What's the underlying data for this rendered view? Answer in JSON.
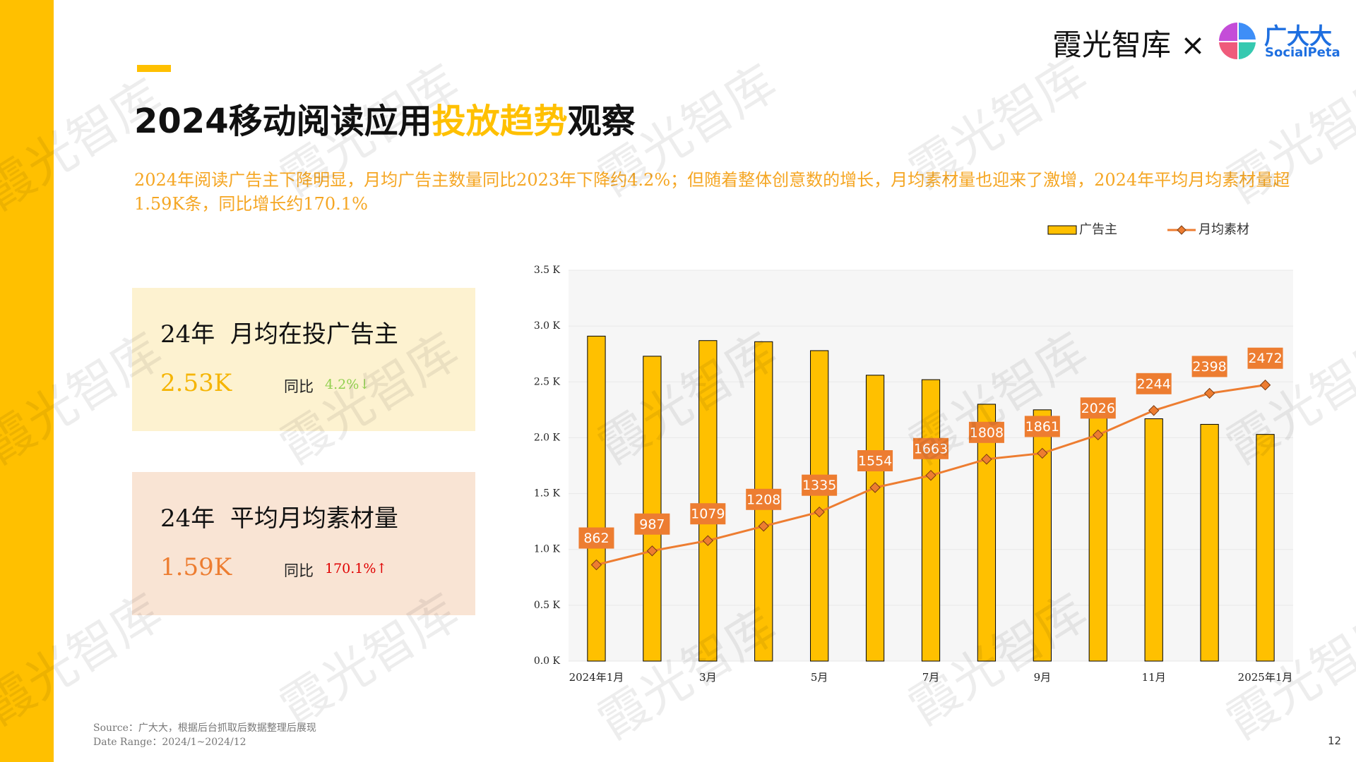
{
  "header": {
    "brand": "霞光智库",
    "times": "×",
    "partner": "广大大",
    "partner_en": "SocialPeta"
  },
  "watermark": "霞光智库",
  "title": {
    "prefix": "2024移动阅读应用",
    "highlight": "投放趋势",
    "suffix": "观察"
  },
  "subtitle": "2024年阅读广告主下降明显，月均广告主数量同比2023年下降约4.2%；但随着整体创意数的增长，月均素材量也迎来了激增，2024年平均月均素材量超1.59K条，同比增长约170.1%",
  "cards": [
    {
      "title": "24年  月均在投广告主",
      "value": "2.53K",
      "yoy_label": "同比",
      "yoy": "4.2%↓"
    },
    {
      "title": "24年  平均月均素材量",
      "value": "1.59K",
      "yoy_label": "同比",
      "yoy": "170.1%↑"
    }
  ],
  "footer": {
    "source": "Source：广大大，根据后台抓取后数据整理后展现",
    "date_range": "Date Range：2024/1~2024/12",
    "page": "12"
  },
  "chart_data": {
    "type": "bar",
    "categories": [
      "2024年1月",
      null,
      "3月",
      null,
      "5月",
      null,
      "7月",
      null,
      "9月",
      null,
      "11月",
      null,
      "2025年1月"
    ],
    "series": [
      {
        "name": "广告主",
        "type": "bar",
        "color": "#ffc000",
        "values": [
          2910,
          2730,
          2870,
          2860,
          2780,
          2560,
          2520,
          2300,
          2250,
          2200,
          2170,
          2120,
          2030
        ]
      },
      {
        "name": "月均素材",
        "type": "line",
        "color": "#ed7d31",
        "values": [
          862,
          987,
          1079,
          1208,
          1335,
          1554,
          1663,
          1808,
          1861,
          2026,
          2244,
          2398,
          2472
        ]
      }
    ],
    "ylim": [
      0,
      3500
    ],
    "yticks": [
      {
        "value": 0,
        "label": "0.0 K"
      },
      {
        "value": 500,
        "label": "0.5 K"
      },
      {
        "value": 1000,
        "label": "1.0 K"
      },
      {
        "value": 1500,
        "label": "1.5 K"
      },
      {
        "value": 2000,
        "label": "2.0 K"
      },
      {
        "value": 2500,
        "label": "2.5 K"
      },
      {
        "value": 3000,
        "label": "3.0 K"
      },
      {
        "value": 3500,
        "label": "3.5 K"
      }
    ],
    "grid": true
  }
}
